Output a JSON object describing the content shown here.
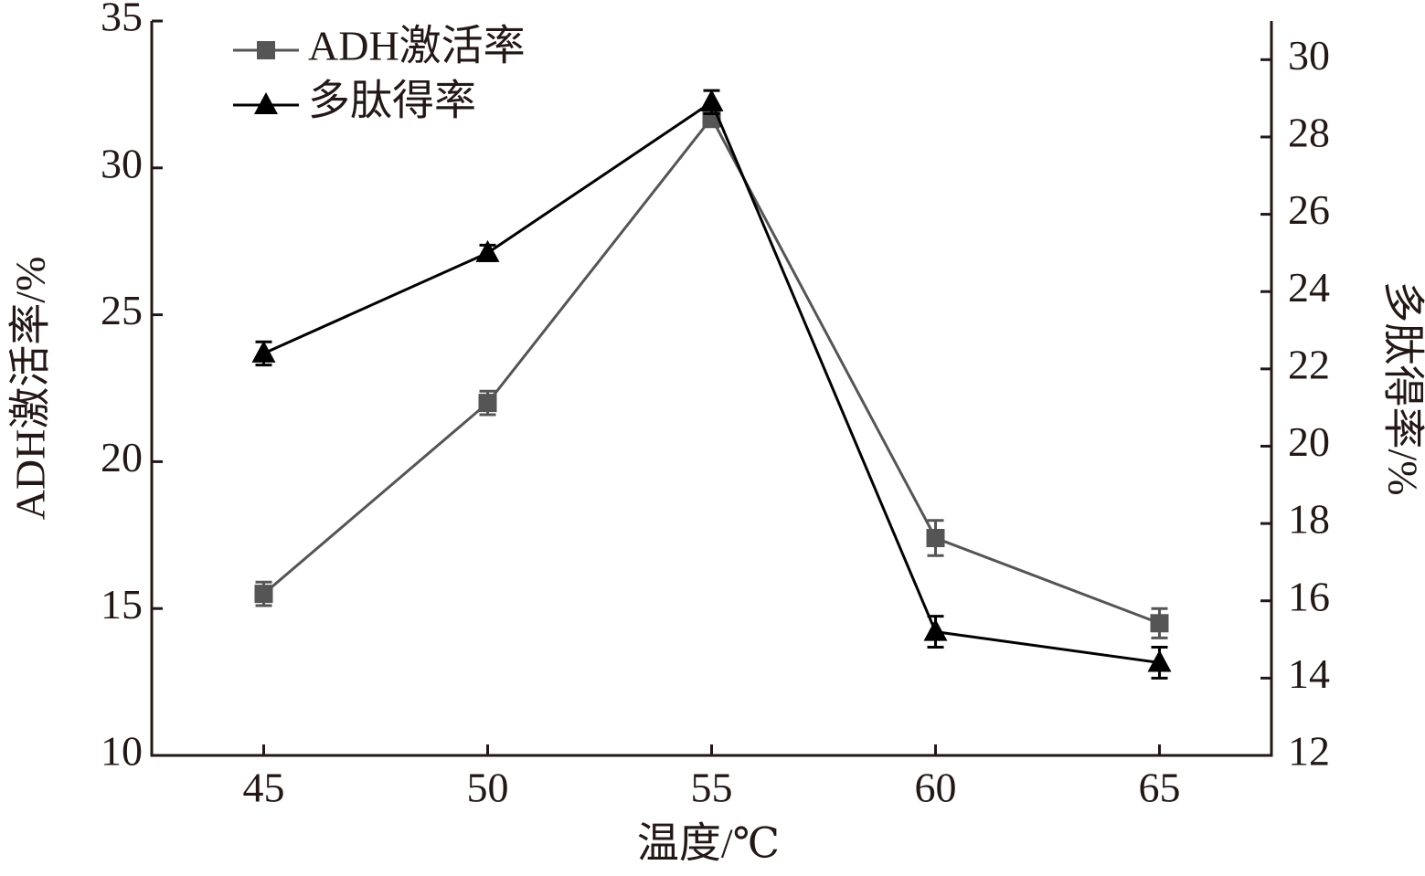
{
  "chart_data": {
    "type": "line",
    "x_label": "温度/℃",
    "y_label": "ADH激活率/%",
    "y2_label": "多肽得率/%",
    "x": [
      45,
      50,
      55,
      60,
      65
    ],
    "xlim": [
      42.5,
      67.5
    ],
    "xticks": [
      45,
      50,
      55,
      60,
      65
    ],
    "ylim": [
      10,
      35
    ],
    "yticks": [
      10,
      15,
      20,
      25,
      30,
      35
    ],
    "y2lim": [
      12,
      31
    ],
    "y2ticks": [
      12,
      14,
      16,
      18,
      20,
      22,
      24,
      26,
      28,
      30
    ],
    "legend": "top-left",
    "series": [
      {
        "name": "ADH激活率",
        "color": "#555555",
        "marker": "square",
        "values": [
          15.5,
          22.0,
          31.7,
          17.4,
          14.5
        ],
        "errors": [
          0.4,
          0.4,
          0.3,
          0.6,
          0.5
        ]
      },
      {
        "name": "多肽得率",
        "color": "#000000",
        "marker": "triangle",
        "axis": "y2",
        "values": [
          22.4,
          25.0,
          28.9,
          15.2,
          14.4
        ],
        "errors": [
          0.3,
          0.2,
          0.3,
          0.4,
          0.4
        ]
      }
    ]
  }
}
